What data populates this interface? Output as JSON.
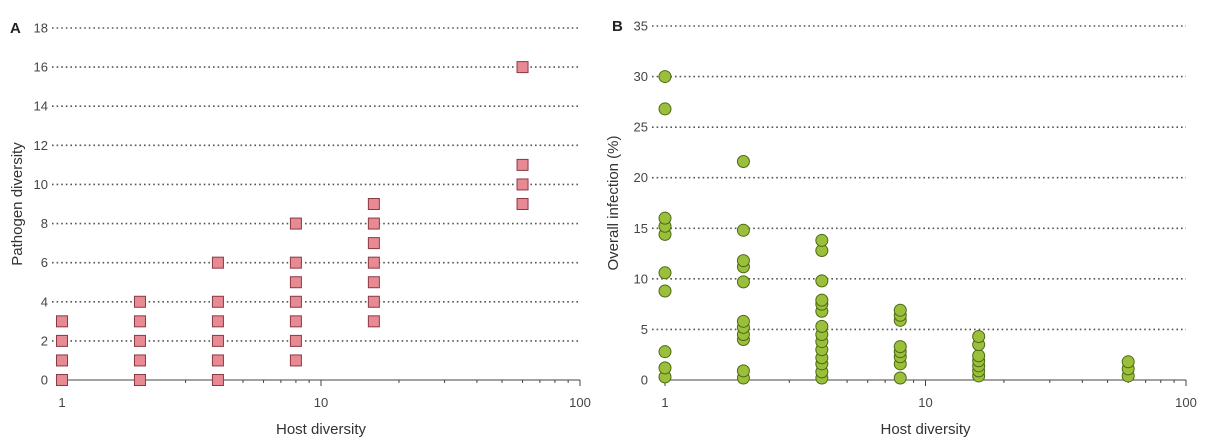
{
  "chart_data": [
    {
      "panel": "A",
      "type": "scatter",
      "xlabel": "Host diversity",
      "ylabel": "Pathogen diversity",
      "xscale": "log",
      "xlim": [
        1,
        100
      ],
      "ylim": [
        0,
        18
      ],
      "xticks": [
        "1",
        "10",
        "100"
      ],
      "yticks": [
        "0",
        "2",
        "4",
        "6",
        "8",
        "10",
        "12",
        "14",
        "16",
        "18"
      ],
      "grid": "horizontal-dotted",
      "marker": "square",
      "color": "#e88a93",
      "edge_color": "#8a3a44",
      "points": [
        [
          1,
          0
        ],
        [
          1,
          1
        ],
        [
          1,
          2
        ],
        [
          1,
          3
        ],
        [
          2,
          0
        ],
        [
          2,
          1
        ],
        [
          2,
          2
        ],
        [
          2,
          3
        ],
        [
          2,
          4
        ],
        [
          4,
          0
        ],
        [
          4,
          1
        ],
        [
          4,
          2
        ],
        [
          4,
          3
        ],
        [
          4,
          4
        ],
        [
          4,
          6
        ],
        [
          8,
          1
        ],
        [
          8,
          2
        ],
        [
          8,
          3
        ],
        [
          8,
          4
        ],
        [
          8,
          5
        ],
        [
          8,
          6
        ],
        [
          8,
          8
        ],
        [
          16,
          3
        ],
        [
          16,
          4
        ],
        [
          16,
          5
        ],
        [
          16,
          6
        ],
        [
          16,
          7
        ],
        [
          16,
          8
        ],
        [
          16,
          9
        ],
        [
          60,
          9
        ],
        [
          60,
          10
        ],
        [
          60,
          11
        ],
        [
          60,
          16
        ]
      ]
    },
    {
      "panel": "B",
      "type": "scatter",
      "xlabel": "Host diversity",
      "ylabel": "Overall infection (%)",
      "xscale": "log",
      "xlim": [
        1,
        100
      ],
      "ylim": [
        0,
        35
      ],
      "xticks": [
        "1",
        "10",
        "100"
      ],
      "yticks": [
        "0",
        "5",
        "10",
        "15",
        "20",
        "25",
        "30",
        "35"
      ],
      "grid": "horizontal-dotted",
      "marker": "circle",
      "color": "#9bbf3b",
      "edge_color": "#4a6a14",
      "points": [
        [
          1,
          0.3
        ],
        [
          1,
          1.2
        ],
        [
          1,
          2.8
        ],
        [
          1,
          8.8
        ],
        [
          1,
          10.6
        ],
        [
          1,
          14.4
        ],
        [
          1,
          15.2
        ],
        [
          1,
          16
        ],
        [
          1,
          26.8
        ],
        [
          1,
          30
        ],
        [
          2,
          0.2
        ],
        [
          2,
          0.9
        ],
        [
          2,
          4
        ],
        [
          2,
          4.5
        ],
        [
          2,
          5.2
        ],
        [
          2,
          5.8
        ],
        [
          2,
          9.7
        ],
        [
          2,
          11.2
        ],
        [
          2,
          11.8
        ],
        [
          2,
          14.8
        ],
        [
          2,
          21.6
        ],
        [
          4,
          0.2
        ],
        [
          4,
          0.8
        ],
        [
          4,
          1.6
        ],
        [
          4,
          2.2
        ],
        [
          4,
          3
        ],
        [
          4,
          3.8
        ],
        [
          4,
          4.5
        ],
        [
          4,
          5.3
        ],
        [
          4,
          6.8
        ],
        [
          4,
          7.5
        ],
        [
          4,
          7.9
        ],
        [
          4,
          9.8
        ],
        [
          4,
          12.8
        ],
        [
          4,
          13.8
        ],
        [
          8,
          0.2
        ],
        [
          8,
          1.6
        ],
        [
          8,
          2.3
        ],
        [
          8,
          2.8
        ],
        [
          8,
          3.3
        ],
        [
          8,
          5.9
        ],
        [
          8,
          6.4
        ],
        [
          8,
          6.9
        ],
        [
          16,
          0.4
        ],
        [
          16,
          0.9
        ],
        [
          16,
          1.4
        ],
        [
          16,
          1.9
        ],
        [
          16,
          2.4
        ],
        [
          16,
          3.5
        ],
        [
          16,
          4.3
        ],
        [
          60,
          0.4
        ],
        [
          60,
          1.1
        ],
        [
          60,
          1.8
        ]
      ]
    }
  ]
}
